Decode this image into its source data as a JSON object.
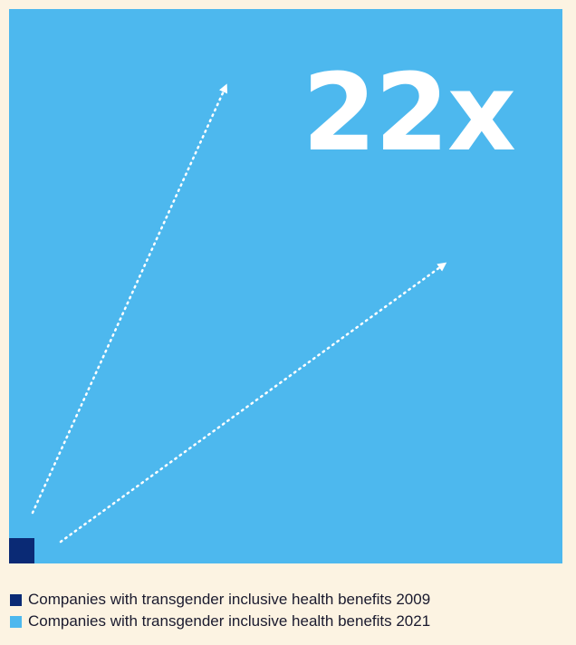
{
  "chart_data": {
    "type": "area",
    "title": "",
    "xlabel": "",
    "ylabel": "",
    "multiplier_label": "22x",
    "series": [
      {
        "name": "Companies with transgender inclusive health benefits 2009",
        "relative_value": 1
      },
      {
        "name": "Companies with transgender inclusive health benefits 2021",
        "relative_value": 22
      }
    ],
    "colors": {
      "2009": "#0a2a75",
      "2021": "#4db8ee",
      "arrow": "#ffffff",
      "background": "#fcf3e2"
    }
  }
}
